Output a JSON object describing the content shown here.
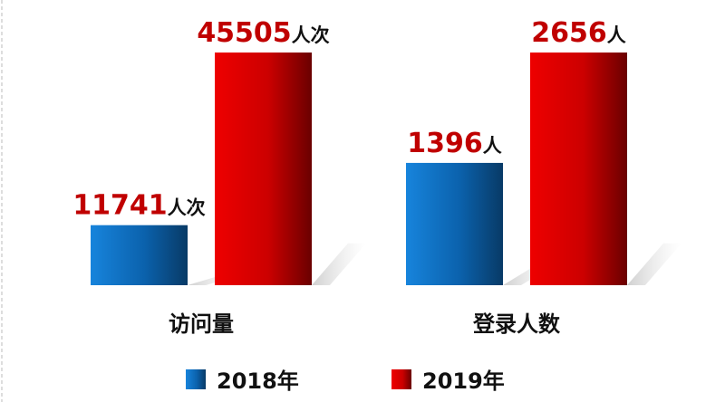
{
  "chart_data": {
    "type": "bar",
    "categories": [
      "访问量",
      "登录人数"
    ],
    "series": [
      {
        "name": "2018年",
        "color": "#0b6fc2",
        "values": [
          11741,
          1396
        ],
        "value_labels": [
          "11741人次",
          "1396人"
        ]
      },
      {
        "name": "2019年",
        "color": "#d40000",
        "values": [
          45505,
          2656
        ],
        "value_labels": [
          "45505人次",
          "2656人"
        ]
      }
    ]
  }
}
